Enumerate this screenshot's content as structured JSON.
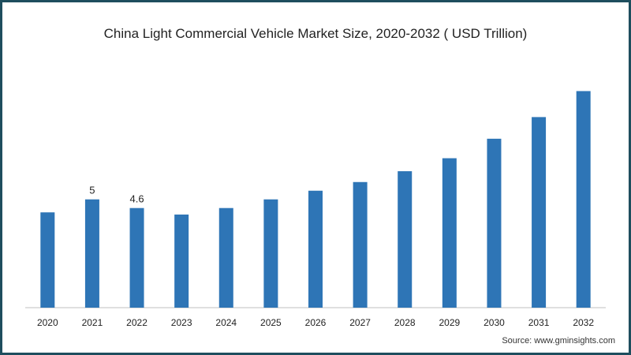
{
  "chart_data": {
    "type": "bar",
    "title": "China Light Commercial Vehicle Market Size, 2020-2032 ( USD Trillion)",
    "categories": [
      "2020",
      "2021",
      "2022",
      "2023",
      "2024",
      "2025",
      "2026",
      "2027",
      "2028",
      "2029",
      "2030",
      "2031",
      "2032"
    ],
    "values": [
      4.4,
      5.0,
      4.6,
      4.3,
      4.6,
      5.0,
      5.4,
      5.8,
      6.3,
      6.9,
      7.8,
      8.8,
      10.0
    ],
    "data_labels": [
      "",
      "5",
      "4.6",
      "",
      "",
      "",
      "",
      "",
      "",
      "",
      "",
      "",
      ""
    ],
    "xlabel": "",
    "ylabel": "",
    "ylim": [
      0,
      11
    ],
    "grid": false,
    "bar_color": "#2e75b6"
  },
  "source_text": "Source: www.gminsights.com",
  "colors": {
    "border": "#1e4e5e",
    "bar": "#2e75b6"
  }
}
